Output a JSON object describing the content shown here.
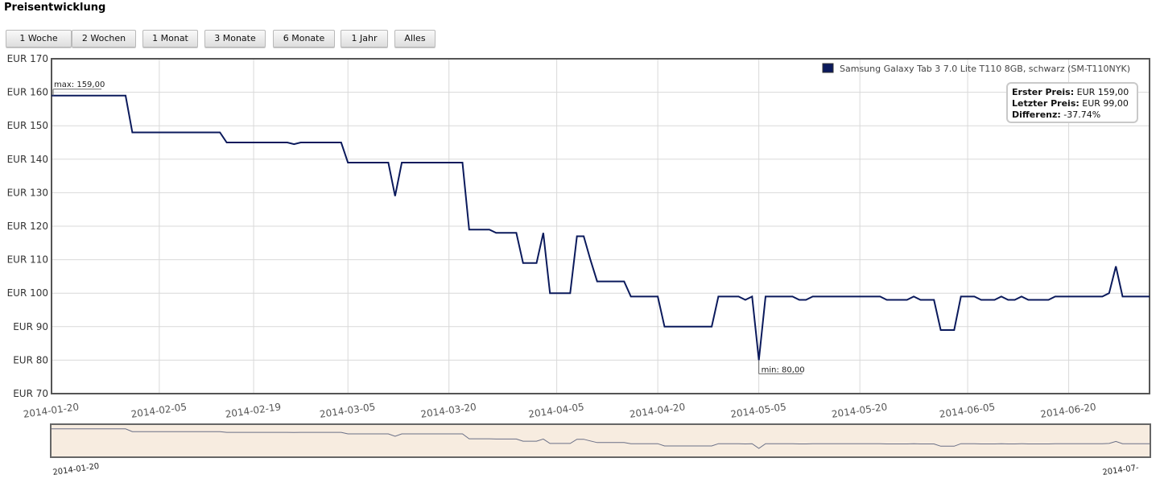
{
  "title": "Preisentwicklung",
  "range_buttons": [
    "1 Woche",
    "2 Wochen",
    "1 Monat",
    "3 Monate",
    "6 Monate",
    "1 Jahr",
    "Alles"
  ],
  "colors": {
    "series": "#0b1a5c",
    "grid": "#d9d9d9",
    "navigator_bg": "#f7ece0",
    "frame": "#555555"
  },
  "chart_data": {
    "type": "line",
    "legend": "Samsung Galaxy Tab 3 7.0 Lite T110 8GB, schwarz (SM-T110NYK)",
    "legend_position": "top-right",
    "grid": true,
    "y_tick_labels": [
      "EUR 70",
      "EUR 80",
      "EUR 90",
      "EUR 100",
      "EUR 110",
      "EUR 120",
      "EUR 130",
      "EUR 140",
      "EUR 150",
      "EUR 160",
      "EUR 170"
    ],
    "ylim": [
      70,
      170
    ],
    "y_ticks": [
      70,
      80,
      90,
      100,
      110,
      120,
      130,
      140,
      150,
      160,
      170
    ],
    "xlim": [
      "2014-01-20",
      "2014-07-02"
    ],
    "x_ticks": [
      {
        "date": "2014-01-20",
        "label": "2014-01-20"
      },
      {
        "date": "2014-02-05",
        "label": "2014-02-05"
      },
      {
        "date": "2014-02-19",
        "label": "2014-02-19"
      },
      {
        "date": "2014-03-05",
        "label": "2014-03-05"
      },
      {
        "date": "2014-03-20",
        "label": "2014-03-20"
      },
      {
        "date": "2014-04-05",
        "label": "2014-04-05"
      },
      {
        "date": "2014-04-20",
        "label": "2014-04-20"
      },
      {
        "date": "2014-05-05",
        "label": "2014-05-05"
      },
      {
        "date": "2014-05-20",
        "label": "2014-05-20"
      },
      {
        "date": "2014-06-05",
        "label": "2014-06-05"
      },
      {
        "date": "2014-06-20",
        "label": "2014-06-20"
      }
    ],
    "points": [
      [
        "2014-01-20",
        159
      ],
      [
        "2014-01-31",
        159
      ],
      [
        "2014-02-01",
        148
      ],
      [
        "2014-02-14",
        148
      ],
      [
        "2014-02-15",
        145
      ],
      [
        "2014-02-24",
        145
      ],
      [
        "2014-02-25",
        144.5
      ],
      [
        "2014-02-26",
        145
      ],
      [
        "2014-03-04",
        145
      ],
      [
        "2014-03-05",
        139
      ],
      [
        "2014-03-11",
        139
      ],
      [
        "2014-03-12",
        129
      ],
      [
        "2014-03-13",
        139
      ],
      [
        "2014-03-22",
        139
      ],
      [
        "2014-03-23",
        119
      ],
      [
        "2014-03-26",
        119
      ],
      [
        "2014-03-27",
        118
      ],
      [
        "2014-03-30",
        118
      ],
      [
        "2014-03-31",
        109
      ],
      [
        "2014-04-02",
        109
      ],
      [
        "2014-04-03",
        118
      ],
      [
        "2014-04-04",
        100
      ],
      [
        "2014-04-07",
        100
      ],
      [
        "2014-04-08",
        117
      ],
      [
        "2014-04-09",
        117
      ],
      [
        "2014-04-10",
        110
      ],
      [
        "2014-04-11",
        103.5
      ],
      [
        "2014-04-14",
        103.5
      ],
      [
        "2014-04-15",
        103.5
      ],
      [
        "2014-04-16",
        99
      ],
      [
        "2014-04-20",
        99
      ],
      [
        "2014-04-21",
        90
      ],
      [
        "2014-04-28",
        90
      ],
      [
        "2014-04-29",
        99
      ],
      [
        "2014-05-02",
        99
      ],
      [
        "2014-05-03",
        98
      ],
      [
        "2014-05-04",
        99
      ],
      [
        "2014-05-05",
        80
      ],
      [
        "2014-05-06",
        99
      ],
      [
        "2014-05-10",
        99
      ],
      [
        "2014-05-11",
        98
      ],
      [
        "2014-05-12",
        98
      ],
      [
        "2014-05-13",
        99
      ],
      [
        "2014-05-23",
        99
      ],
      [
        "2014-05-24",
        98
      ],
      [
        "2014-05-27",
        98
      ],
      [
        "2014-05-28",
        99
      ],
      [
        "2014-05-29",
        98
      ],
      [
        "2014-05-31",
        98
      ],
      [
        "2014-06-01",
        89
      ],
      [
        "2014-06-03",
        89
      ],
      [
        "2014-06-04",
        99
      ],
      [
        "2014-06-06",
        99
      ],
      [
        "2014-06-07",
        98
      ],
      [
        "2014-06-09",
        98
      ],
      [
        "2014-06-10",
        99
      ],
      [
        "2014-06-11",
        98
      ],
      [
        "2014-06-12",
        98
      ],
      [
        "2014-06-13",
        99
      ],
      [
        "2014-06-14",
        98
      ],
      [
        "2014-06-17",
        98
      ],
      [
        "2014-06-18",
        99
      ],
      [
        "2014-06-25",
        99
      ],
      [
        "2014-06-26",
        100
      ],
      [
        "2014-06-27",
        108
      ],
      [
        "2014-06-28",
        99
      ],
      [
        "2014-07-02",
        99
      ]
    ],
    "max_label": "max: 159,00",
    "max_point": [
      "2014-01-20",
      159
    ],
    "min_label": "min: 80,00",
    "min_point": [
      "2014-05-05",
      80
    ],
    "info_box": [
      {
        "label": "Erster Preis:",
        "value": "EUR 159,00"
      },
      {
        "label": "Letzter Preis:",
        "value": "EUR 99,00"
      },
      {
        "label": "Differenz:",
        "value": "-37.74%"
      }
    ],
    "navigator_labels": [
      "2014-01-20",
      "2014-07-"
    ]
  }
}
